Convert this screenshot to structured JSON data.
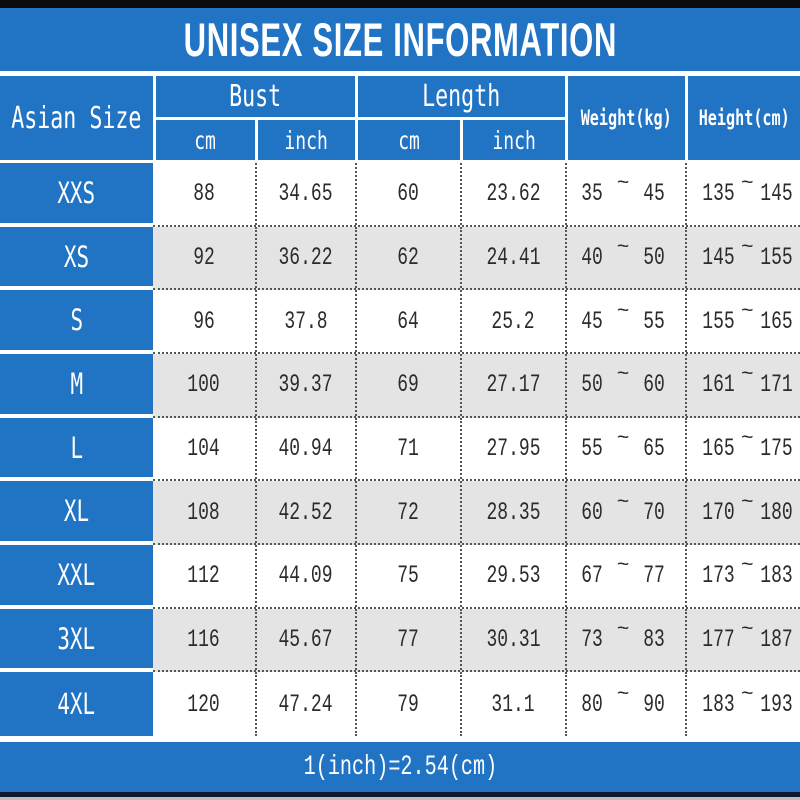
{
  "title": "UNISEX SIZE INFORMATION",
  "footer_note": "1(inch)=2.54(cm)",
  "range_separator": "~",
  "header": {
    "size_column": "Asian Size",
    "groups": [
      {
        "label": "Bust",
        "subs": [
          "cm",
          "inch"
        ]
      },
      {
        "label": "Length",
        "subs": [
          "cm",
          "inch"
        ]
      }
    ],
    "weight": "Weight(kg)",
    "height": "Height(cm)"
  },
  "rows": [
    {
      "size": "XXS",
      "bust_cm": "88",
      "bust_inch": "34.65",
      "length_cm": "60",
      "length_inch": "23.62",
      "weight_min": "35",
      "weight_max": "45",
      "height_min": "135",
      "height_max": "145"
    },
    {
      "size": "XS",
      "bust_cm": "92",
      "bust_inch": "36.22",
      "length_cm": "62",
      "length_inch": "24.41",
      "weight_min": "40",
      "weight_max": "50",
      "height_min": "145",
      "height_max": "155"
    },
    {
      "size": "S",
      "bust_cm": "96",
      "bust_inch": "37.8",
      "length_cm": "64",
      "length_inch": "25.2",
      "weight_min": "45",
      "weight_max": "55",
      "height_min": "155",
      "height_max": "165"
    },
    {
      "size": "M",
      "bust_cm": "100",
      "bust_inch": "39.37",
      "length_cm": "69",
      "length_inch": "27.17",
      "weight_min": "50",
      "weight_max": "60",
      "height_min": "161",
      "height_max": "171"
    },
    {
      "size": "L",
      "bust_cm": "104",
      "bust_inch": "40.94",
      "length_cm": "71",
      "length_inch": "27.95",
      "weight_min": "55",
      "weight_max": "65",
      "height_min": "165",
      "height_max": "175"
    },
    {
      "size": "XL",
      "bust_cm": "108",
      "bust_inch": "42.52",
      "length_cm": "72",
      "length_inch": "28.35",
      "weight_min": "60",
      "weight_max": "70",
      "height_min": "170",
      "height_max": "180"
    },
    {
      "size": "XXL",
      "bust_cm": "112",
      "bust_inch": "44.09",
      "length_cm": "75",
      "length_inch": "29.53",
      "weight_min": "67",
      "weight_max": "77",
      "height_min": "173",
      "height_max": "183"
    },
    {
      "size": "3XL",
      "bust_cm": "116",
      "bust_inch": "45.67",
      "length_cm": "77",
      "length_inch": "30.31",
      "weight_min": "73",
      "weight_max": "83",
      "height_min": "177",
      "height_max": "187"
    },
    {
      "size": "4XL",
      "bust_cm": "120",
      "bust_inch": "47.24",
      "length_cm": "79",
      "length_inch": "31.1",
      "weight_min": "80",
      "weight_max": "90",
      "height_min": "183",
      "height_max": "193"
    }
  ],
  "colors": {
    "blue": "#2173c4",
    "row_alt": "#e5e4e5",
    "dotted_line": "#555555",
    "top_bar": "#0b0b0b",
    "bottom_bar": "#111a2d"
  },
  "chart_data": {
    "type": "table",
    "title": "UNISEX SIZE INFORMATION",
    "columns": [
      "Asian Size",
      "Bust cm",
      "Bust inch",
      "Length cm",
      "Length inch",
      "Weight(kg)",
      "Height(cm)"
    ],
    "rows": [
      [
        "XXS",
        88,
        34.65,
        60,
        23.62,
        "35~45",
        "135~145"
      ],
      [
        "XS",
        92,
        36.22,
        62,
        24.41,
        "40~50",
        "145~155"
      ],
      [
        "S",
        96,
        37.8,
        64,
        25.2,
        "45~55",
        "155~165"
      ],
      [
        "M",
        100,
        39.37,
        69,
        27.17,
        "50~60",
        "161~171"
      ],
      [
        "L",
        104,
        40.94,
        71,
        27.95,
        "55~65",
        "165~175"
      ],
      [
        "XL",
        108,
        42.52,
        72,
        28.35,
        "60~70",
        "170~180"
      ],
      [
        "XXL",
        112,
        44.09,
        75,
        29.53,
        "67~77",
        "173~183"
      ],
      [
        "3XL",
        116,
        45.67,
        77,
        30.31,
        "73~83",
        "177~187"
      ],
      [
        "4XL",
        120,
        47.24,
        79,
        31.1,
        "80~90",
        "183~193"
      ]
    ],
    "note": "1(inch)=2.54(cm)"
  }
}
